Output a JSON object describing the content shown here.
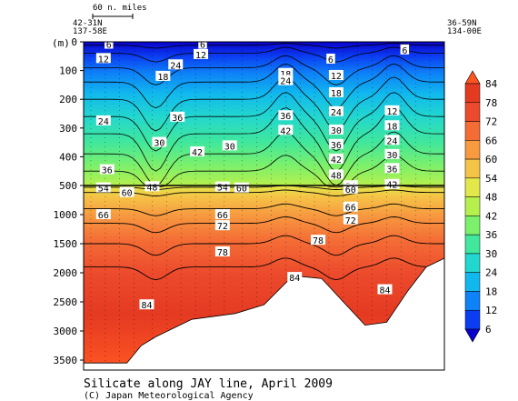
{
  "chart_data": {
    "type": "heatmap",
    "title": "Silicate along JAY line, April 2009",
    "credit": "(C) Japan Meteorological Agency",
    "ylabel": "(m)",
    "scale_bar_label": "60 n. miles",
    "left_station": {
      "lat": "42-31N",
      "lon": "137-58E"
    },
    "right_station": {
      "lat": "36-59N",
      "lon": "134-00E"
    },
    "depth_ticks_upper": [
      "0",
      "100",
      "200",
      "300",
      "400",
      "500"
    ],
    "depth_ticks_lower": [
      "1000",
      "1500",
      "2000",
      "2500",
      "3000",
      "3500"
    ],
    "depth_split": 500,
    "colorbar": {
      "levels": [
        6,
        12,
        18,
        24,
        30,
        36,
        42,
        48,
        54,
        60,
        66,
        72,
        78,
        84
      ],
      "colors": [
        "#0a00cc",
        "#0b3df2",
        "#0e82f8",
        "#10b8ee",
        "#22d7cf",
        "#41e79c",
        "#7cf06c",
        "#b6f04d",
        "#e3e84a",
        "#f5c446",
        "#f79a40",
        "#f46c35",
        "#ec4a2c",
        "#e43a22",
        "#ff5522"
      ]
    },
    "contour_labels": [
      {
        "v": "6",
        "d": 8,
        "i": 0.07
      },
      {
        "v": "6",
        "d": 8,
        "i": 0.33
      },
      {
        "v": "6",
        "d": 60,
        "i": 0.685
      },
      {
        "v": "6",
        "d": 28,
        "i": 0.89
      },
      {
        "v": "12",
        "d": 58,
        "i": 0.055
      },
      {
        "v": "12",
        "d": 44,
        "i": 0.325
      },
      {
        "v": "12",
        "d": 117,
        "i": 0.7
      },
      {
        "v": "12",
        "d": 240,
        "i": 0.855
      },
      {
        "v": "18",
        "d": 120,
        "i": 0.22
      },
      {
        "v": "18",
        "d": 110,
        "i": 0.56
      },
      {
        "v": "18",
        "d": 177,
        "i": 0.7
      },
      {
        "v": "18",
        "d": 292,
        "i": 0.855
      },
      {
        "v": "24",
        "d": 80,
        "i": 0.255
      },
      {
        "v": "24",
        "d": 135,
        "i": 0.56
      },
      {
        "v": "24",
        "d": 275,
        "i": 0.055
      },
      {
        "v": "24",
        "d": 243,
        "i": 0.7
      },
      {
        "v": "24",
        "d": 343,
        "i": 0.855
      },
      {
        "v": "30",
        "d": 350,
        "i": 0.21
      },
      {
        "v": "30",
        "d": 362,
        "i": 0.405
      },
      {
        "v": "30",
        "d": 307,
        "i": 0.7
      },
      {
        "v": "30",
        "d": 392,
        "i": 0.855
      },
      {
        "v": "36",
        "d": 262,
        "i": 0.26
      },
      {
        "v": "36",
        "d": 257,
        "i": 0.56
      },
      {
        "v": "36",
        "d": 445,
        "i": 0.065
      },
      {
        "v": "36",
        "d": 357,
        "i": 0.7
      },
      {
        "v": "36",
        "d": 441,
        "i": 0.855
      },
      {
        "v": "42",
        "d": 383,
        "i": 0.315
      },
      {
        "v": "42",
        "d": 308,
        "i": 0.56
      },
      {
        "v": "42",
        "d": 408,
        "i": 0.7
      },
      {
        "v": "42",
        "d": 496,
        "i": 0.855
      },
      {
        "v": "48",
        "d": 463,
        "i": 0.7
      },
      {
        "v": "48",
        "d": 520,
        "i": 0.19
      },
      {
        "v": "54",
        "d": 540,
        "i": 0.055
      },
      {
        "v": "54",
        "d": 525,
        "i": 0.385
      },
      {
        "v": "54",
        "d": 504,
        "i": 0.74
      },
      {
        "v": "60",
        "d": 620,
        "i": 0.12
      },
      {
        "v": "60",
        "d": 542,
        "i": 0.438
      },
      {
        "v": "60",
        "d": 560,
        "i": 0.74
      },
      {
        "v": "66",
        "d": 1000,
        "i": 0.055
      },
      {
        "v": "66",
        "d": 1000,
        "i": 0.385
      },
      {
        "v": "66",
        "d": 870,
        "i": 0.74
      },
      {
        "v": "72",
        "d": 1190,
        "i": 0.385
      },
      {
        "v": "72",
        "d": 1090,
        "i": 0.74
      },
      {
        "v": "78",
        "d": 1640,
        "i": 0.385
      },
      {
        "v": "78",
        "d": 1440,
        "i": 0.65
      },
      {
        "v": "84",
        "d": 2550,
        "i": 0.175
      },
      {
        "v": "84",
        "d": 2080,
        "i": 0.585
      },
      {
        "v": "84",
        "d": 2290,
        "i": 0.835
      }
    ]
  }
}
